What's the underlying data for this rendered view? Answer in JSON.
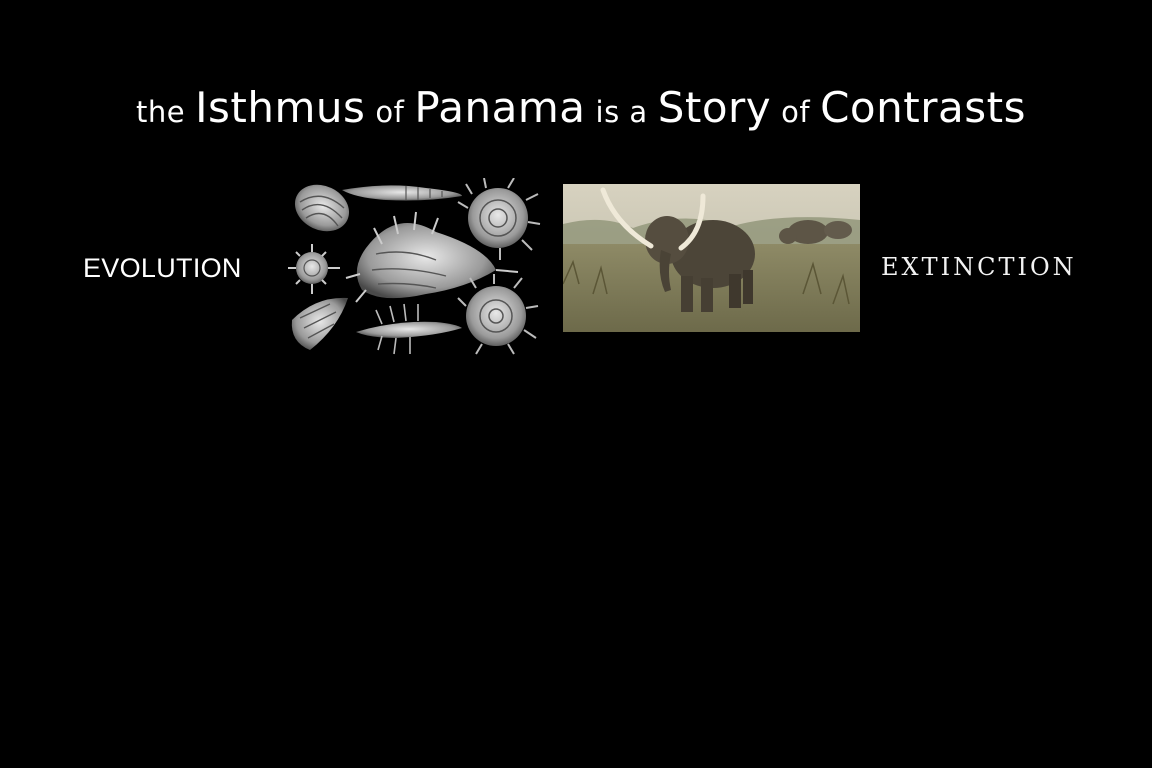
{
  "slide": {
    "title_parts": [
      "the",
      "Isthmus",
      "of",
      "Panama",
      "is a",
      "Story",
      "of",
      "Contrasts"
    ],
    "left_label": "EVOLUTION",
    "right_label": "EXTINCTION"
  },
  "images": {
    "left": "shells-illustration",
    "right": "mammoth-painting"
  },
  "colors": {
    "background": "#000000",
    "text": "#ffffff"
  }
}
